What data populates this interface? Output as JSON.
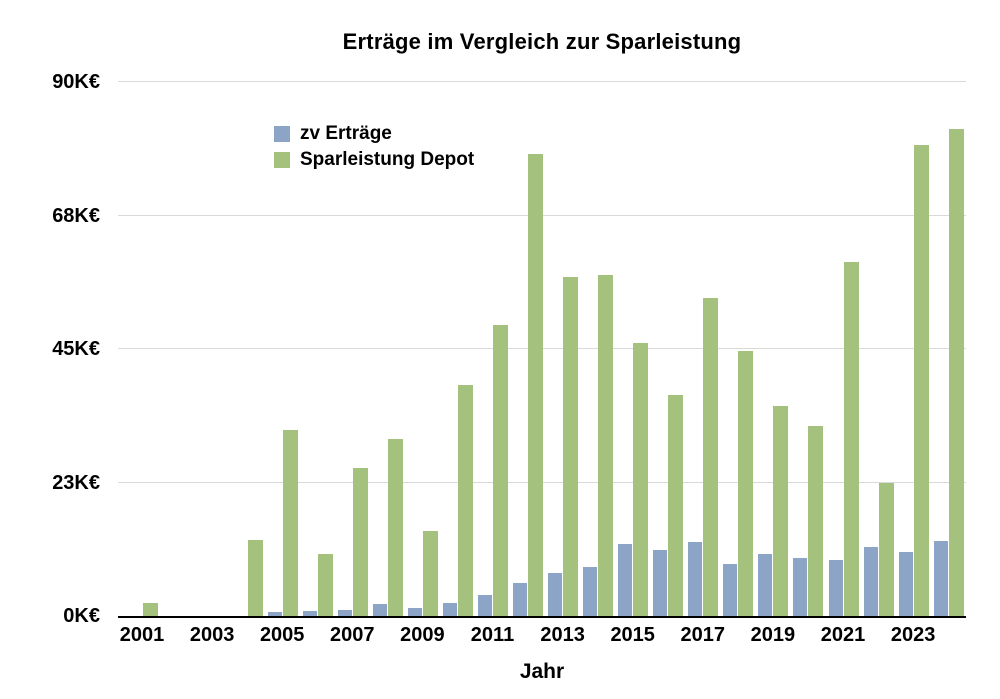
{
  "chart_data": {
    "type": "bar",
    "title": "Erträge im Vergleich zur Sparleistung",
    "xlabel": "Jahr",
    "ylabel": "",
    "unit": "K€",
    "ylim": [
      0,
      90
    ],
    "grid": "horizontal",
    "legend_position": "top-left-inside",
    "categories": [
      2001,
      2002,
      2003,
      2004,
      2005,
      2006,
      2007,
      2008,
      2009,
      2010,
      2011,
      2012,
      2013,
      2014,
      2015,
      2016,
      2017,
      2018,
      2019,
      2020,
      2021,
      2022,
      2023,
      2024
    ],
    "x_tick_labels": [
      "2001",
      "2003",
      "2005",
      "2007",
      "2009",
      "2011",
      "2013",
      "2015",
      "2017",
      "2019",
      "2021",
      "2023"
    ],
    "y_ticks": [
      {
        "value": 0,
        "label": "0K€"
      },
      {
        "value": 22.5,
        "label": "23K€"
      },
      {
        "value": 45,
        "label": "45K€"
      },
      {
        "value": 67.5,
        "label": "68K€"
      },
      {
        "value": 90,
        "label": "90K€"
      }
    ],
    "series": [
      {
        "name": "zv Erträge",
        "slug": "zv-ertraege",
        "color": "#8ca5c7",
        "values": [
          0,
          0,
          0,
          0,
          0.6,
          0.8,
          1.0,
          2.1,
          1.4,
          2.2,
          3.6,
          5.6,
          7.3,
          8.2,
          12.1,
          11.1,
          12.4,
          8.8,
          10.5,
          9.8,
          9.5,
          11.7,
          10.8,
          12.6
        ]
      },
      {
        "name": "Sparleistung Depot",
        "slug": "sparleistung-depot",
        "color": "#a4c17e",
        "values": [
          2.2,
          0,
          0,
          12.8,
          31.4,
          10.5,
          25.0,
          29.8,
          14.4,
          38.9,
          49.0,
          77.8,
          57.2,
          57.5,
          46.0,
          37.2,
          53.6,
          44.6,
          35.4,
          32.0,
          59.6,
          22.5,
          79.4,
          82.0
        ]
      }
    ],
    "style": {
      "grid_color": "#d9d9d9",
      "axis_color": "#000000",
      "text_color": "#000000",
      "background": "#ffffff"
    }
  }
}
